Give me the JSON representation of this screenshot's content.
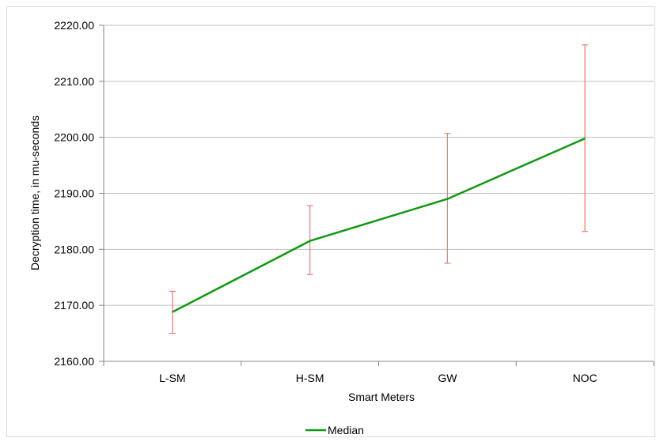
{
  "chart_data": {
    "type": "line",
    "categories": [
      "L-SM",
      "H-SM",
      "GW",
      "NOC"
    ],
    "series": [
      {
        "name": "Median",
        "values": [
          2168.8,
          2181.5,
          2189.0,
          2199.8
        ],
        "error_low": [
          2165.0,
          2175.5,
          2177.5,
          2183.2
        ],
        "error_high": [
          2172.5,
          2187.8,
          2200.7,
          2216.5
        ]
      }
    ],
    "xlabel": "Smart Meters",
    "ylabel": "Decryption time, in mu-seconds",
    "ylim": [
      2160,
      2220
    ],
    "yticks": [
      "2160.00",
      "2170.00",
      "2180.00",
      "2190.00",
      "2200.00",
      "2210.00",
      "2220.00"
    ],
    "grid": true,
    "legend_position": "bottom",
    "colors": {
      "line": "#119911",
      "error": "#f07c6c",
      "grid": "#bfbfbf",
      "axis": "#868686"
    }
  }
}
